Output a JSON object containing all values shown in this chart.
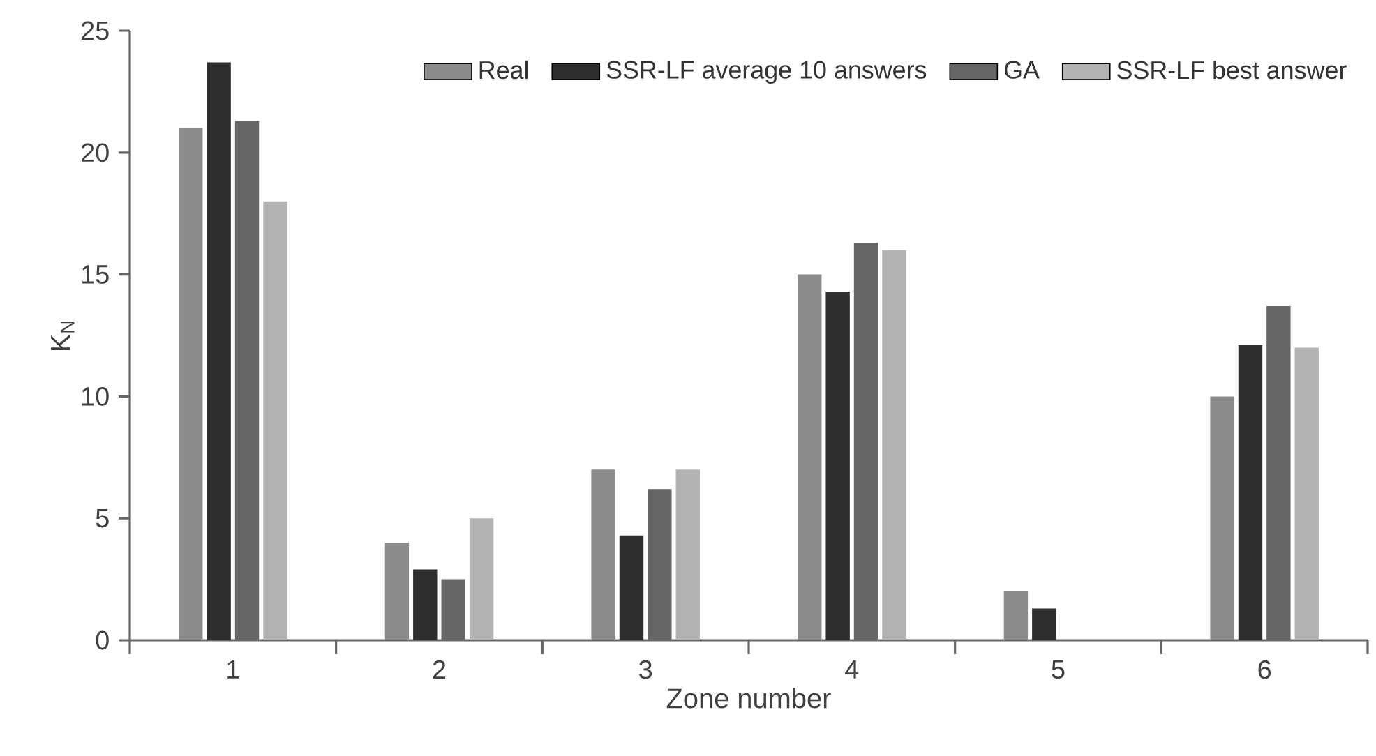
{
  "chart_data": {
    "type": "bar",
    "xlabel": "Zone number",
    "ylabel": "K$_{N}$",
    "categories": [
      "1",
      "2",
      "3",
      "4",
      "5",
      "6"
    ],
    "series": [
      {
        "name": "Real",
        "color": "#8c8c8c",
        "values": [
          21.0,
          4.0,
          7.0,
          15.0,
          2.0,
          10.0
        ]
      },
      {
        "name": "SSR-LF average 10 answers",
        "color": "#2e2e2e",
        "values": [
          23.7,
          2.9,
          4.3,
          14.3,
          1.3,
          12.1
        ]
      },
      {
        "name": "GA",
        "color": "#666666",
        "values": [
          21.3,
          2.5,
          6.2,
          16.3,
          0,
          13.7
        ]
      },
      {
        "name": "SSR-LF best answer",
        "color": "#b3b3b3",
        "values": [
          18.0,
          5.0,
          7.0,
          16.0,
          0,
          12.0
        ]
      }
    ],
    "ylim": [
      0,
      25
    ],
    "yticks": [
      0,
      5,
      10,
      15,
      20,
      25
    ],
    "grid": false,
    "legend": "top right"
  }
}
